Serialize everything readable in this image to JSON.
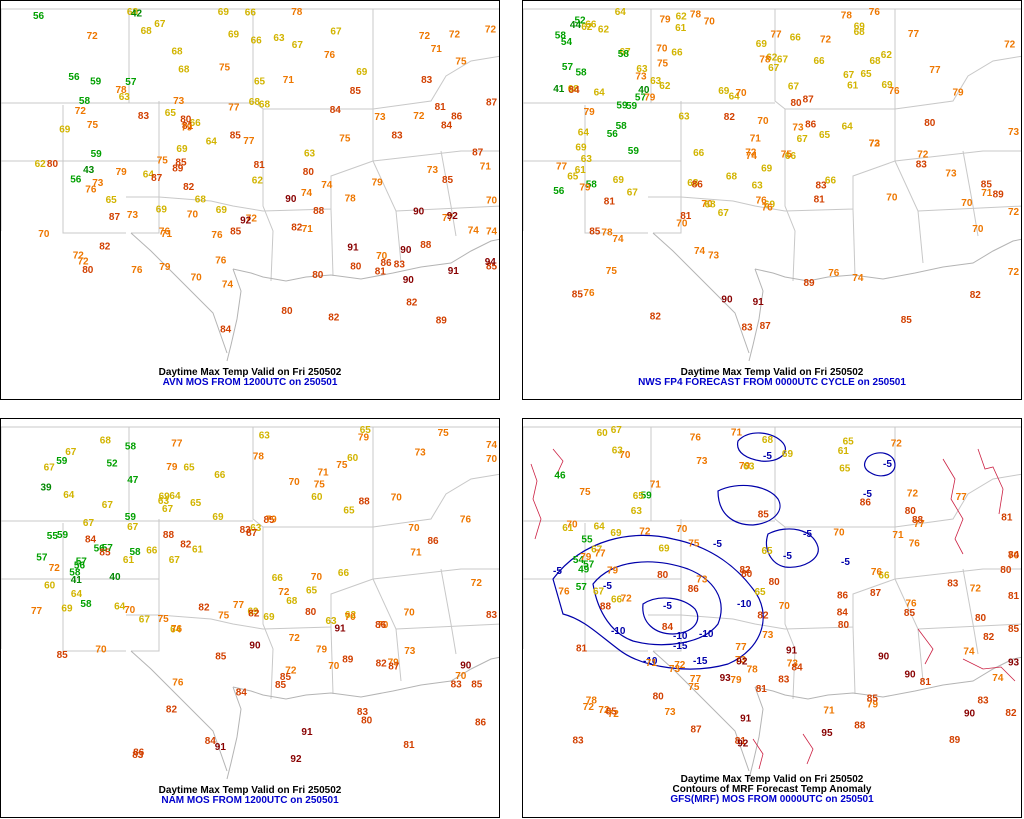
{
  "panels": [
    {
      "id": "p1",
      "title": "Daytime Max Temp Valid on Fri 250502",
      "subtitle": "",
      "source": "AVN MOS FROM 1200UTC on 250501",
      "labels": [
        "56",
        "64",
        "67",
        "66",
        "59",
        "62",
        "72",
        "68",
        "69",
        "74",
        "70",
        "65",
        "63",
        "66",
        "72",
        "68",
        "68",
        "69",
        "70",
        "73",
        "71",
        "78",
        "76",
        "74",
        "72",
        "70",
        "71",
        "68",
        "69",
        "43",
        "56",
        "63",
        "65",
        "64",
        "67",
        "75",
        "77",
        "71",
        "76",
        "72",
        "63",
        "80",
        "82",
        "76",
        "72",
        "74",
        "69",
        "72",
        "71",
        "73",
        "78",
        "85",
        "83",
        "80",
        "73",
        "76",
        "75",
        "62",
        "42",
        "66",
        "68",
        "68",
        "69",
        "70",
        "75",
        "79",
        "77",
        "74",
        "75",
        "58",
        "56",
        "57",
        "76",
        "68",
        "71",
        "73",
        "74",
        "77",
        "80",
        "84",
        "81",
        "69",
        "72",
        "65",
        "72",
        "78",
        "83",
        "83",
        "80",
        "59",
        "80",
        "72",
        "69",
        "67",
        "76",
        "75",
        "79",
        "81",
        "82",
        "87",
        "87",
        "89",
        "85",
        "85",
        "73",
        "70",
        "82",
        "84",
        "87",
        "85",
        "85",
        "90",
        "91",
        "88",
        "86",
        "94",
        "83",
        "85",
        "81",
        "82",
        "84",
        "80",
        "86",
        "79",
        "81",
        "88",
        "90",
        "89",
        "92",
        "90",
        "91",
        "90",
        "92",
        "87",
        "79",
        "82",
        "80"
      ],
      "contours": []
    },
    {
      "id": "p2",
      "title": "Daytime Max Temp Valid on Fri 250502",
      "subtitle": "",
      "source": "NWS FP4 FORECAST FROM 0000UTC CYCLE on 250501",
      "labels": [
        "57",
        "59",
        "62",
        "64",
        "63",
        "61",
        "59",
        "57",
        "58",
        "61",
        "66",
        "69",
        "72",
        "67",
        "63",
        "64",
        "65",
        "66",
        "67",
        "64",
        "59",
        "58",
        "62",
        "67",
        "70",
        "70",
        "77",
        "44",
        "58",
        "66",
        "62",
        "63",
        "64",
        "65",
        "68",
        "73",
        "41",
        "66",
        "67",
        "69",
        "66",
        "65",
        "64",
        "72",
        "67",
        "70",
        "69",
        "69",
        "62",
        "68",
        "40",
        "62",
        "68",
        "66",
        "68",
        "66",
        "63",
        "70",
        "74",
        "72",
        "70",
        "56",
        "62",
        "58",
        "69",
        "69",
        "72",
        "72",
        "58",
        "61",
        "63",
        "67",
        "71",
        "73",
        "75",
        "79",
        "77",
        "80",
        "56",
        "52",
        "67",
        "68",
        "69",
        "69",
        "70",
        "72",
        "68",
        "73",
        "78",
        "76",
        "75",
        "73",
        "70",
        "54",
        "67",
        "74",
        "77",
        "76",
        "75",
        "72",
        "73",
        "77",
        "79",
        "86",
        "82",
        "76",
        "70",
        "70",
        "74",
        "71",
        "74",
        "76",
        "81",
        "82",
        "79",
        "83",
        "83",
        "85",
        "78",
        "85",
        "78",
        "87",
        "90",
        "73",
        "76",
        "79",
        "79",
        "82",
        "86",
        "81",
        "76",
        "84",
        "89",
        "87",
        "83",
        "85",
        "91",
        "81",
        "80",
        "78",
        "89",
        "85"
      ],
      "contours": []
    },
    {
      "id": "p3",
      "title": "Daytime Max Temp Valid on Fri 250502",
      "subtitle": "",
      "source": "NAM MOS FROM 1200UTC on 250501",
      "labels": [
        "55",
        "62",
        "63",
        "59",
        "56",
        "64",
        "58",
        "59",
        "57",
        "58",
        "56",
        "66",
        "70",
        "73",
        "72",
        "68",
        "69",
        "67",
        "67",
        "70",
        "67",
        "66",
        "63",
        "57",
        "60",
        "61",
        "64",
        "63",
        "65",
        "70",
        "70",
        "71",
        "70",
        "40",
        "64",
        "68",
        "67",
        "69",
        "66",
        "64",
        "79",
        "39",
        "69",
        "60",
        "70",
        "59",
        "77",
        "58",
        "65",
        "67",
        "72",
        "70",
        "76",
        "70",
        "58",
        "67",
        "41",
        "47",
        "64",
        "65",
        "67",
        "69",
        "73",
        "76",
        "79",
        "82",
        "75",
        "77",
        "83",
        "76",
        "60",
        "65",
        "57",
        "63",
        "69",
        "70",
        "72",
        "72",
        "77",
        "81",
        "82",
        "75",
        "83",
        "85",
        "67",
        "65",
        "66",
        "70",
        "75",
        "80",
        "87",
        "83",
        "85",
        "70",
        "52",
        "74",
        "79",
        "83",
        "84",
        "85",
        "84",
        "86",
        "72",
        "75",
        "61",
        "71",
        "78",
        "85",
        "87",
        "86",
        "85",
        "86",
        "82",
        "70",
        "86",
        "75",
        "82",
        "83",
        "84",
        "85",
        "80",
        "88",
        "90",
        "91",
        "89",
        "85",
        "79",
        "79",
        "82",
        "91",
        "92",
        "88",
        "90",
        "91"
      ],
      "contours": []
    },
    {
      "id": "p4",
      "title": "Daytime Max Temp Valid on Fri 250502",
      "subtitle": "Contours of MRF Forecast Temp Anomaly",
      "source": "GFS(MRF) MOS FROM 0000UTC on 250501",
      "labels": [
        "57",
        "60",
        "64",
        "65",
        "67",
        "66",
        "63",
        "61",
        "65",
        "65",
        "67",
        "70",
        "73",
        "72",
        "77",
        "46",
        "59",
        "66",
        "68",
        "69",
        "70",
        "72",
        "73",
        "71",
        "74",
        "55",
        "61",
        "65",
        "70",
        "73",
        "71",
        "69",
        "70",
        "73",
        "75",
        "75",
        "72",
        "57",
        "63",
        "49",
        "71",
        "71",
        "72",
        "73",
        "77",
        "78",
        "80",
        "81",
        "81",
        "76",
        "54",
        "65",
        "72",
        "72",
        "75",
        "76",
        "79",
        "80",
        "83",
        "82",
        "81",
        "63",
        "69",
        "67",
        "70",
        "72",
        "73",
        "76",
        "79",
        "80",
        "85",
        "86",
        "84",
        "76",
        "72",
        "74",
        "72",
        "70",
        "77",
        "79",
        "81",
        "79",
        "80",
        "82",
        "83",
        "84",
        "85",
        "78",
        "77",
        "71",
        "73",
        "76",
        "77",
        "80",
        "81",
        "83",
        "85",
        "87",
        "88",
        "82",
        "83",
        "85",
        "89",
        "88",
        "86",
        "90",
        "93",
        "81",
        "84",
        "87",
        "88",
        "80",
        "86",
        "80",
        "79",
        "85",
        "84",
        "90",
        "92",
        "93",
        "91",
        "92",
        "95",
        "90",
        "91",
        "82",
        "80"
      ],
      "contours": [
        "-5",
        "-5",
        "-5",
        "-5",
        "-5",
        "-5",
        "-5",
        "-10",
        "-10",
        "-10",
        "-10",
        "-15",
        "-15",
        "-10",
        "-5",
        "-5",
        "-5"
      ]
    }
  ],
  "colors": {
    "lt45": "#008800",
    "45to59": "#00a000",
    "60to69": "#d2b400",
    "70to79": "#ee7700",
    "80to89": "#d24000",
    "90plus": "#880000",
    "contour_negative": "#0000aa",
    "contour_positive": "#cc2244",
    "borders": "#c8c8c8",
    "coast": "#b4b4b4"
  }
}
